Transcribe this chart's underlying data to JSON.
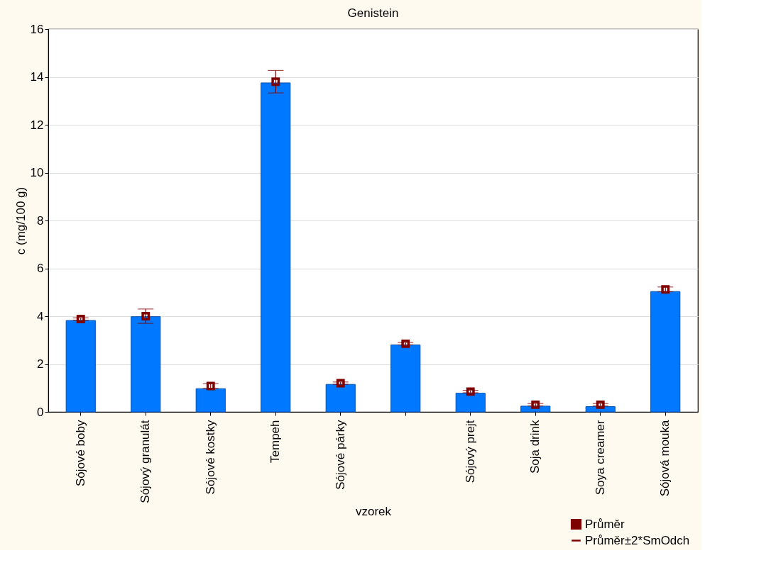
{
  "chart_data": {
    "type": "bar",
    "title": "Genistein",
    "xlabel": "vzorek",
    "ylabel": "c (mg/100 g)",
    "categories": [
      "Sójové boby",
      "Sójový granulát",
      "Sójové kostky",
      "Tempeh",
      "Sójové párky",
      null,
      "Sójový prejt",
      "Soja drink",
      "Soya creamer",
      "Sójová mouka"
    ],
    "series": [
      {
        "color": "#0078ff",
        "values": [
          3.82,
          3.98,
          0.97,
          13.75,
          1.15,
          2.8,
          0.78,
          0.24,
          0.22,
          5.03
        ]
      },
      {
        "type": "scatter",
        "name": "Průměr",
        "color": "#7f0000",
        "values": [
          3.88,
          4.0,
          1.08,
          13.8,
          1.2,
          2.85,
          0.85,
          0.3,
          0.3,
          5.12
        ],
        "errors": [
          0.05,
          0.3,
          0.1,
          0.47,
          0.05,
          0.05,
          0.05,
          0.05,
          0.05,
          0.1
        ]
      }
    ],
    "annotations": [
      "Průměr±2*SmOdch"
    ],
    "ylim": [
      0,
      16
    ],
    "yticks": [
      0,
      2,
      4,
      6,
      8,
      10,
      12,
      14,
      16
    ],
    "grid": "y",
    "legend": "bottom right",
    "marker": "square"
  }
}
